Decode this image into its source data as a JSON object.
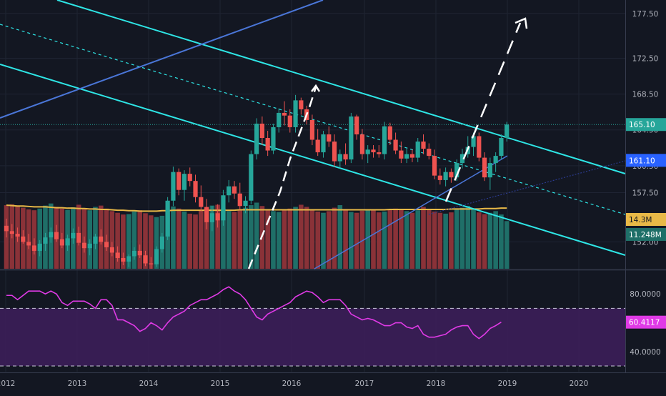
{
  "chart_data": {
    "type": "candlestick",
    "panes": [
      {
        "name": "price",
        "ylim": [
          149.0,
          179.0
        ],
        "price_ticks": [
          "177.50",
          "172.50",
          "168.50",
          "164.50",
          "160.50",
          "157.50",
          "152.00"
        ],
        "last_price": 165.1,
        "last_price_label": "165.10",
        "ma_label": "161.10",
        "volume_ma_label": "14.3M",
        "volume_label": "11.248M",
        "colors": {
          "up": "#26a69a",
          "down": "#ef5350",
          "ma": "#4a76d8",
          "volume_ma": "#e8b947",
          "channel": "#2ee6e6",
          "projection": "#ffffff"
        },
        "candles": [
          [
            153.8,
            154.6,
            152.5,
            153.2
          ],
          [
            153.2,
            154.0,
            152.4,
            152.9
          ],
          [
            152.9,
            153.6,
            152.0,
            152.6
          ],
          [
            152.6,
            153.3,
            151.8,
            152.0
          ],
          [
            152.0,
            152.9,
            151.2,
            151.6
          ],
          [
            151.6,
            152.4,
            150.6,
            151.0
          ],
          [
            151.0,
            152.2,
            150.4,
            151.8
          ],
          [
            151.8,
            153.0,
            151.0,
            152.5
          ],
          [
            152.5,
            153.6,
            151.9,
            153.1
          ],
          [
            153.1,
            153.9,
            152.0,
            152.3
          ],
          [
            152.3,
            153.0,
            151.3,
            151.6
          ],
          [
            151.6,
            152.8,
            151.0,
            152.4
          ],
          [
            152.4,
            153.5,
            151.8,
            153.0
          ],
          [
            153.0,
            153.7,
            151.6,
            151.9
          ],
          [
            151.9,
            152.6,
            150.8,
            151.3
          ],
          [
            151.3,
            152.3,
            150.5,
            151.8
          ],
          [
            151.8,
            152.9,
            151.2,
            152.6
          ],
          [
            152.6,
            153.4,
            151.7,
            152.0
          ],
          [
            152.0,
            152.8,
            151.0,
            151.4
          ],
          [
            151.4,
            152.0,
            150.4,
            150.8
          ],
          [
            150.8,
            151.5,
            149.8,
            150.2
          ],
          [
            150.2,
            150.8,
            149.4,
            149.8
          ],
          [
            149.8,
            150.6,
            149.2,
            150.4
          ],
          [
            150.4,
            151.4,
            150.0,
            151.0
          ],
          [
            151.0,
            151.7,
            150.2,
            150.5
          ],
          [
            150.5,
            151.0,
            149.3,
            149.6
          ],
          [
            149.6,
            150.3,
            149.0,
            149.5
          ],
          [
            149.5,
            151.5,
            149.2,
            151.2
          ],
          [
            151.2,
            153.0,
            150.8,
            152.6
          ],
          [
            152.6,
            157.0,
            152.2,
            156.6
          ],
          [
            156.6,
            160.4,
            156.0,
            159.8
          ],
          [
            159.8,
            160.2,
            157.2,
            157.8
          ],
          [
            157.8,
            160.0,
            156.6,
            159.6
          ],
          [
            159.6,
            160.3,
            158.2,
            158.8
          ],
          [
            158.8,
            159.5,
            156.4,
            157.0
          ],
          [
            157.0,
            158.3,
            155.4,
            155.9
          ],
          [
            155.9,
            156.8,
            153.4,
            154.2
          ],
          [
            154.2,
            156.0,
            153.2,
            155.2
          ],
          [
            155.2,
            156.2,
            153.6,
            154.4
          ],
          [
            154.4,
            157.8,
            153.8,
            157.2
          ],
          [
            157.2,
            158.9,
            156.4,
            158.2
          ],
          [
            158.2,
            158.8,
            156.8,
            157.4
          ],
          [
            157.4,
            158.6,
            155.6,
            156.0
          ],
          [
            156.0,
            157.1,
            155.2,
            156.6
          ],
          [
            156.6,
            162.2,
            156.2,
            161.8
          ],
          [
            161.8,
            165.8,
            161.2,
            165.2
          ],
          [
            165.2,
            166.0,
            162.8,
            163.6
          ],
          [
            163.6,
            164.4,
            161.6,
            162.2
          ],
          [
            162.2,
            165.2,
            161.8,
            164.8
          ],
          [
            164.8,
            166.9,
            164.2,
            166.4
          ],
          [
            166.4,
            167.7,
            165.0,
            166.1
          ],
          [
            166.1,
            166.8,
            164.2,
            164.8
          ],
          [
            164.8,
            168.4,
            164.2,
            167.8
          ],
          [
            167.8,
            168.1,
            166.2,
            166.8
          ],
          [
            166.8,
            167.2,
            165.1,
            165.6
          ],
          [
            165.6,
            166.2,
            162.8,
            163.4
          ],
          [
            163.4,
            164.6,
            161.6,
            162.0
          ],
          [
            162.0,
            164.4,
            161.4,
            164.0
          ],
          [
            164.0,
            164.9,
            162.6,
            163.2
          ],
          [
            163.2,
            164.0,
            160.4,
            161.0
          ],
          [
            161.0,
            162.3,
            160.2,
            161.8
          ],
          [
            161.8,
            163.0,
            160.6,
            161.2
          ],
          [
            161.2,
            166.4,
            160.8,
            166.0
          ],
          [
            166.0,
            166.2,
            163.4,
            164.0
          ],
          [
            164.0,
            164.6,
            161.2,
            161.8
          ],
          [
            161.8,
            162.8,
            160.8,
            162.3
          ],
          [
            162.3,
            162.8,
            161.4,
            162.0
          ],
          [
            162.0,
            162.8,
            161.4,
            161.8
          ],
          [
            161.8,
            165.4,
            161.2,
            164.9
          ],
          [
            164.9,
            165.3,
            162.8,
            163.4
          ],
          [
            163.4,
            164.2,
            161.8,
            162.2
          ],
          [
            162.2,
            163.2,
            160.8,
            161.3
          ],
          [
            161.3,
            162.4,
            160.8,
            161.8
          ],
          [
            161.8,
            162.3,
            160.9,
            161.4
          ],
          [
            161.4,
            163.6,
            160.9,
            163.2
          ],
          [
            163.2,
            164.0,
            161.8,
            162.4
          ],
          [
            162.4,
            163.0,
            161.2,
            161.6
          ],
          [
            161.6,
            162.3,
            159.0,
            159.4
          ],
          [
            159.4,
            160.2,
            158.4,
            158.9
          ],
          [
            158.9,
            160.3,
            158.2,
            159.8
          ],
          [
            159.8,
            160.2,
            158.6,
            159.2
          ],
          [
            159.2,
            161.2,
            158.8,
            160.8
          ],
          [
            160.8,
            162.4,
            160.2,
            161.8
          ],
          [
            161.8,
            163.8,
            161.4,
            162.6
          ],
          [
            162.6,
            164.2,
            161.6,
            163.8
          ],
          [
            163.8,
            164.2,
            161.0,
            161.4
          ],
          [
            161.4,
            162.0,
            158.8,
            159.2
          ],
          [
            159.2,
            161.4,
            157.8,
            160.8
          ],
          [
            160.8,
            162.0,
            159.8,
            161.6
          ],
          [
            161.6,
            164.0,
            161.2,
            163.6
          ],
          [
            163.6,
            165.4,
            163.2,
            165.1
          ]
        ]
      },
      {
        "name": "rsi",
        "ylim": [
          26.0,
          96.0
        ],
        "rsi_ticks": [
          "80.0000",
          "40.0000"
        ],
        "rsi_last": 60.4117,
        "rsi_label": "60.4117",
        "band_upper": 70,
        "band_lower": 30,
        "colors": {
          "line": "#e03ae6",
          "band": "#3e1e5c"
        },
        "values": [
          79,
          79,
          76,
          79,
          82,
          82,
          82,
          80,
          82,
          80,
          74,
          72,
          75,
          75,
          75,
          73,
          70,
          76,
          76,
          72,
          62,
          62,
          60,
          58,
          54,
          56,
          60,
          58,
          55,
          60,
          64,
          66,
          68,
          72,
          74,
          76,
          76,
          78,
          80,
          83,
          85,
          82,
          80,
          76,
          70,
          64,
          62,
          66,
          68,
          70,
          72,
          74,
          78,
          80,
          82,
          81,
          78,
          74,
          76,
          76,
          76,
          72,
          66,
          64,
          62,
          63,
          62,
          60,
          58,
          58,
          60,
          60,
          57,
          56,
          58,
          52,
          50,
          50,
          51,
          52,
          55,
          57,
          58,
          58,
          52,
          49,
          52,
          56,
          58,
          60.4117
        ]
      }
    ],
    "x_ticks": [
      "2012",
      "2013",
      "2014",
      "2015",
      "2016",
      "2017",
      "2018",
      "2019",
      "2020"
    ],
    "volume_values": [
      15.0,
      15.2,
      14.8,
      14.4,
      14.0,
      13.8,
      14.2,
      14.9,
      15.4,
      14.6,
      14.2,
      13.9,
      14.5,
      15.1,
      14.3,
      13.8,
      14.6,
      14.9,
      14.2,
      13.6,
      13.2,
      12.8,
      12.9,
      13.5,
      13.8,
      13.1,
      12.6,
      12.2,
      12.5,
      13.8,
      14.7,
      14.2,
      13.5,
      13.0,
      12.8,
      13.8,
      14.5,
      14.9,
      15.1,
      14.2,
      13.6,
      13.4,
      13.8,
      14.4,
      15.0,
      15.6,
      14.8,
      14.1,
      13.6,
      13.4,
      13.8,
      14.2,
      14.6,
      15.1,
      14.6,
      14.0,
      13.5,
      13.2,
      13.6,
      14.4,
      15.0,
      14.1,
      13.4,
      13.2,
      13.7,
      14.0,
      13.8,
      13.3,
      13.5,
      13.9,
      14.2,
      14.0,
      13.6,
      13.2,
      13.8,
      14.6,
      14.1,
      13.5,
      13.2,
      13.0,
      13.3,
      14.0,
      14.4,
      14.8,
      14.1,
      13.3,
      12.9,
      13.2,
      13.6,
      12.8,
      11.248
    ],
    "volume_ma_values": [
      15.0,
      14.9,
      14.8,
      14.8,
      14.7,
      14.6,
      14.6,
      14.6,
      14.5,
      14.4,
      14.4,
      14.3,
      14.3,
      14.2,
      14.2,
      14.1,
      14.1,
      14.0,
      14.0,
      13.9,
      13.8,
      13.8,
      13.7,
      13.7,
      13.6,
      13.6,
      13.6,
      13.6,
      13.7,
      13.7,
      13.8,
      13.8,
      13.8,
      13.8,
      13.8,
      13.8,
      13.8,
      13.8,
      13.8,
      13.8,
      13.8,
      13.8,
      13.9,
      13.9,
      13.9,
      13.9,
      13.9,
      13.9,
      13.9,
      13.9,
      13.9,
      13.9,
      13.9,
      13.9,
      13.9,
      13.9,
      13.9,
      13.9,
      13.9,
      13.9,
      13.9,
      13.9,
      13.9,
      13.9,
      13.9,
      13.9,
      13.9,
      13.9,
      13.9,
      14.0,
      14.0,
      14.0,
      14.0,
      14.0,
      14.0,
      14.0,
      14.0,
      14.0,
      14.0,
      14.0,
      14.1,
      14.1,
      14.1,
      14.1,
      14.1,
      14.1,
      14.2,
      14.2,
      14.2,
      14.3,
      14.3
    ]
  }
}
